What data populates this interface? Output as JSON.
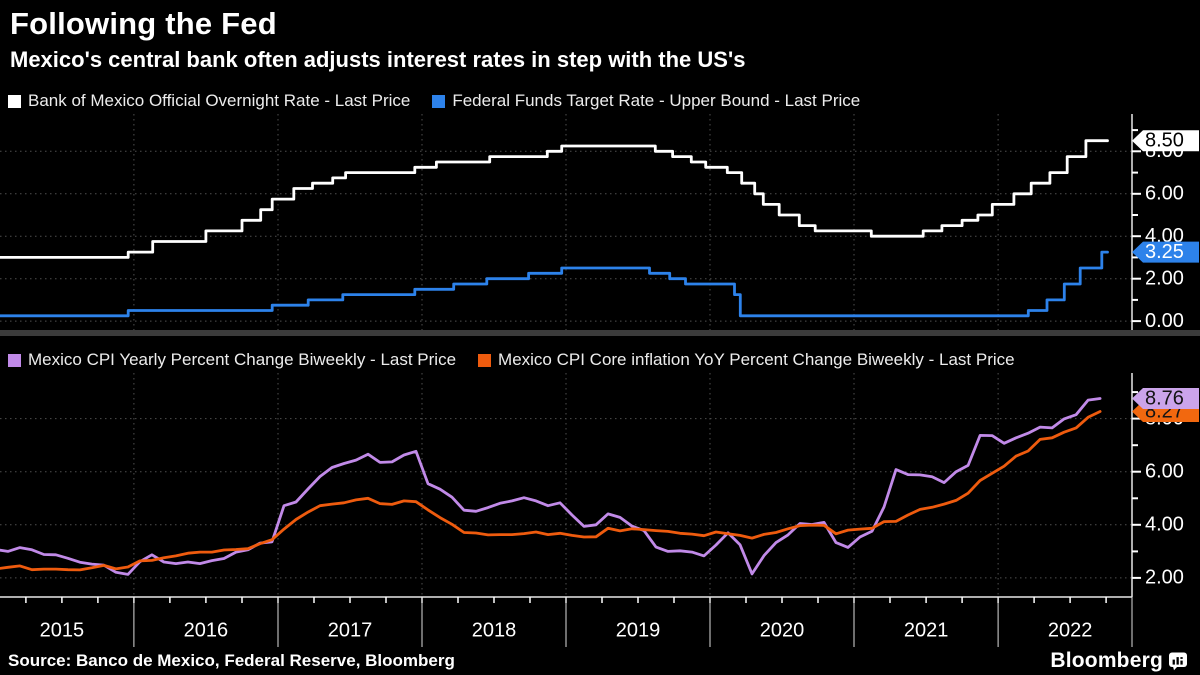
{
  "header": {
    "title": "Following the Fed",
    "subtitle": "Mexico's central bank often adjusts interest rates in step with the US's"
  },
  "source": {
    "label": "Source: Banco de Mexico, Federal Reserve, Bloomberg",
    "brand": "Bloomberg"
  },
  "xaxis": {
    "xlim": [
      2015.07,
      2022.93
    ],
    "year_gridlines": [
      2016,
      2017,
      2018,
      2019,
      2020,
      2021,
      2022
    ],
    "year_labels": [
      "2015",
      "2016",
      "2017",
      "2018",
      "2019",
      "2020",
      "2021",
      "2022"
    ],
    "quarter_tick_start": 2015.25,
    "quarter_tick_end": 2022.8,
    "quarter_step": 0.25
  },
  "chart_data": [
    {
      "type": "line",
      "panel_id": "panel-rates",
      "legend_id": "legend-rates",
      "ylim": [
        -0.42,
        9.76
      ],
      "ygrid": [
        0,
        2,
        4,
        6,
        8
      ],
      "yticks": {
        "labeled": [
          [
            0,
            "0.00"
          ],
          [
            2,
            "2.00"
          ],
          [
            4,
            "4.00"
          ],
          [
            6,
            "6.00"
          ],
          [
            8,
            "8.00"
          ]
        ],
        "minor": [
          1,
          3,
          5,
          7,
          9
        ]
      },
      "series": [
        {
          "name": "Bank of Mexico Official Overnight Rate - Last Price",
          "color": "#ffffff",
          "step": true,
          "last_price": "8.50",
          "tag_bg": "#ffffff",
          "tag_fg": "#000000",
          "points": [
            [
              2015.04,
              3.0
            ],
            [
              2015.96,
              3.25
            ],
            [
              2016.13,
              3.75
            ],
            [
              2016.5,
              4.25
            ],
            [
              2016.75,
              4.75
            ],
            [
              2016.88,
              5.25
            ],
            [
              2016.96,
              5.75
            ],
            [
              2017.11,
              6.25
            ],
            [
              2017.24,
              6.5
            ],
            [
              2017.38,
              6.75
            ],
            [
              2017.47,
              7.0
            ],
            [
              2017.95,
              7.25
            ],
            [
              2018.1,
              7.5
            ],
            [
              2018.47,
              7.75
            ],
            [
              2018.87,
              8.0
            ],
            [
              2018.97,
              8.25
            ],
            [
              2019.62,
              8.0
            ],
            [
              2019.74,
              7.75
            ],
            [
              2019.87,
              7.5
            ],
            [
              2019.97,
              7.25
            ],
            [
              2020.12,
              7.0
            ],
            [
              2020.22,
              6.5
            ],
            [
              2020.31,
              6.0
            ],
            [
              2020.37,
              5.5
            ],
            [
              2020.48,
              5.0
            ],
            [
              2020.62,
              4.5
            ],
            [
              2020.73,
              4.25
            ],
            [
              2021.12,
              4.0
            ],
            [
              2021.48,
              4.25
            ],
            [
              2021.61,
              4.5
            ],
            [
              2021.75,
              4.75
            ],
            [
              2021.86,
              5.0
            ],
            [
              2021.96,
              5.5
            ],
            [
              2022.11,
              6.0
            ],
            [
              2022.23,
              6.5
            ],
            [
              2022.36,
              7.0
            ],
            [
              2022.48,
              7.75
            ],
            [
              2022.61,
              8.5
            ],
            [
              2022.76,
              8.5
            ]
          ]
        },
        {
          "name": "Federal Funds Target Rate - Upper Bound - Last Price",
          "color": "#2d82ea",
          "step": true,
          "last_price": "3.25",
          "tag_bg": "#2d82ea",
          "tag_fg": "#ffffff",
          "points": [
            [
              2015.04,
              0.25
            ],
            [
              2015.96,
              0.5
            ],
            [
              2016.96,
              0.75
            ],
            [
              2017.21,
              1.0
            ],
            [
              2017.45,
              1.25
            ],
            [
              2017.95,
              1.5
            ],
            [
              2018.22,
              1.75
            ],
            [
              2018.45,
              2.0
            ],
            [
              2018.74,
              2.25
            ],
            [
              2018.97,
              2.5
            ],
            [
              2019.58,
              2.25
            ],
            [
              2019.72,
              2.0
            ],
            [
              2019.83,
              1.75
            ],
            [
              2020.17,
              1.25
            ],
            [
              2020.21,
              0.25
            ],
            [
              2022.21,
              0.5
            ],
            [
              2022.34,
              1.0
            ],
            [
              2022.46,
              1.75
            ],
            [
              2022.57,
              2.5
            ],
            [
              2022.72,
              3.25
            ],
            [
              2022.76,
              3.25
            ]
          ]
        }
      ]
    },
    {
      "type": "line",
      "panel_id": "panel-cpi",
      "legend_id": "legend-cpi",
      "ylim": [
        1.28,
        9.72
      ],
      "ygrid": [
        2,
        4,
        6,
        8
      ],
      "yticks": {
        "labeled": [
          [
            2,
            "2.00"
          ],
          [
            4,
            "4.00"
          ],
          [
            6,
            "6.00"
          ],
          [
            8,
            "8.00"
          ]
        ],
        "minor": [
          3,
          5,
          7,
          9
        ]
      },
      "series": [
        {
          "name": "Mexico CPI Yearly Percent Change Biweekly - Last Price",
          "color": "#c18ae8",
          "last_price": "8.76",
          "tag_bg": "#cba4ea",
          "tag_fg": "#141414",
          "start": 2015,
          "monthly": [
            3.07,
            3.0,
            3.14,
            3.06,
            2.88,
            2.87,
            2.74,
            2.59,
            2.52,
            2.48,
            2.21,
            2.13,
            2.61,
            2.87,
            2.6,
            2.54,
            2.6,
            2.54,
            2.65,
            2.73,
            2.97,
            3.06,
            3.31,
            3.36,
            4.72,
            4.86,
            5.35,
            5.82,
            6.16,
            6.31,
            6.44,
            6.66,
            6.35,
            6.37,
            6.63,
            6.77,
            5.55,
            5.34,
            5.04,
            4.55,
            4.51,
            4.65,
            4.81,
            4.9,
            5.02,
            4.9,
            4.72,
            4.83,
            4.37,
            3.94,
            4.0,
            4.41,
            4.28,
            3.95,
            3.78,
            3.16,
            3.0,
            3.02,
            2.97,
            2.83,
            3.24,
            3.7,
            3.25,
            2.15,
            2.84,
            3.33,
            3.62,
            4.05,
            4.01,
            4.09,
            3.33,
            3.15,
            3.54,
            3.76,
            4.67,
            6.08,
            5.89,
            5.88,
            5.81,
            5.59,
            6.0,
            6.24,
            7.37,
            7.36,
            7.07,
            7.28,
            7.45,
            7.68,
            7.65,
            7.99,
            8.15,
            8.7,
            8.76
          ]
        },
        {
          "name": "Mexico CPI Core inflation YoY Percent Change Biweekly - Last Price",
          "color": "#ee5b0e",
          "last_price": "8.27",
          "tag_bg": "#f2680f",
          "tag_fg": "#141414",
          "start": 2015,
          "monthly": [
            2.34,
            2.4,
            2.45,
            2.31,
            2.33,
            2.33,
            2.31,
            2.3,
            2.38,
            2.47,
            2.34,
            2.41,
            2.64,
            2.66,
            2.76,
            2.83,
            2.93,
            2.97,
            2.97,
            3.05,
            3.07,
            3.1,
            3.29,
            3.44,
            3.84,
            4.2,
            4.48,
            4.72,
            4.78,
            4.83,
            4.94,
            5.0,
            4.8,
            4.77,
            4.9,
            4.87,
            4.56,
            4.27,
            4.02,
            3.71,
            3.69,
            3.62,
            3.63,
            3.63,
            3.67,
            3.73,
            3.63,
            3.68,
            3.6,
            3.54,
            3.55,
            3.87,
            3.77,
            3.85,
            3.82,
            3.78,
            3.75,
            3.68,
            3.65,
            3.59,
            3.73,
            3.66,
            3.6,
            3.5,
            3.64,
            3.71,
            3.85,
            3.97,
            3.99,
            3.98,
            3.66,
            3.8,
            3.84,
            3.87,
            4.12,
            4.13,
            4.37,
            4.58,
            4.66,
            4.78,
            4.92,
            5.19,
            5.67,
            5.94,
            6.21,
            6.59,
            6.78,
            7.22,
            7.28,
            7.49,
            7.65,
            8.05,
            8.27
          ]
        }
      ]
    }
  ]
}
